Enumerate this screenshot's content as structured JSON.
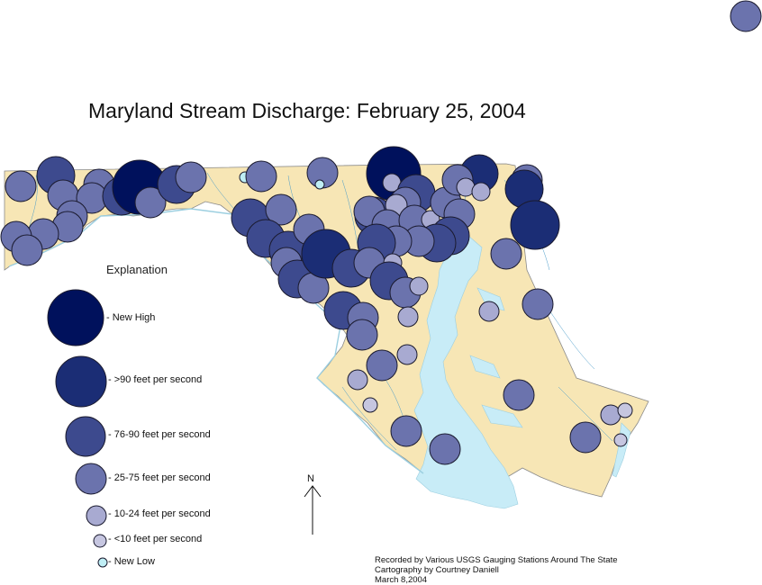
{
  "map": {
    "title": "Maryland Stream Discharge: February 25, 2004",
    "colors": {
      "land": "#f7e6b5",
      "water": "#c8ecf7",
      "new_high": "#00115c",
      "gt90": "#1b2d75",
      "c76_90": "#3d4a8e",
      "c25_75": "#6b73ad",
      "c10_24": "#a8aad1",
      "lt10": "#c6c6e0",
      "new_low": "#bfeef5"
    },
    "legend": {
      "heading": "Explanation",
      "items": [
        {
          "label": "- New High"
        },
        {
          "label": "- >90 feet per second"
        },
        {
          "label": "- 76-90 feet per second"
        },
        {
          "label": "- 25-75 feet per second"
        },
        {
          "label": "- 10-24 feet per second"
        },
        {
          "label": "- <10 feet per second"
        },
        {
          "label": "- New Low"
        }
      ]
    },
    "north_arrow": "N",
    "credits": [
      "Recorded by Various USGS Gauging Stations Around The State",
      "Cartography by Courtney Daniell",
      "March 8,2004"
    ]
  }
}
